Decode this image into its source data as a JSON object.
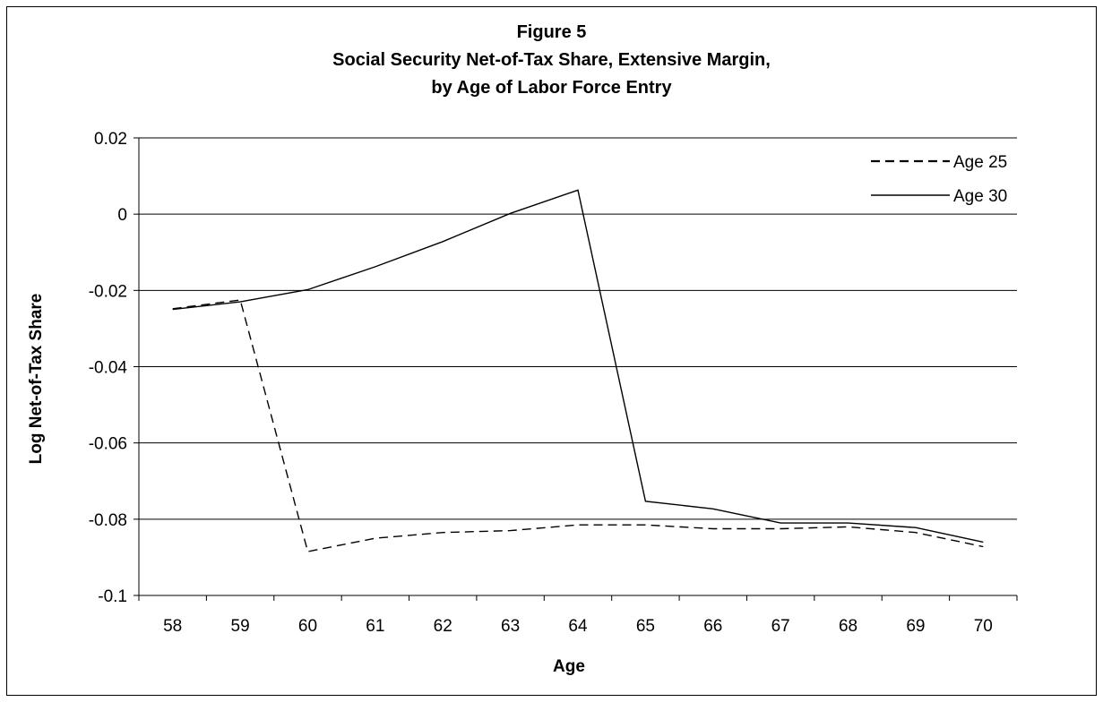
{
  "chart_data": {
    "type": "line",
    "title_lines": [
      "Figure 5",
      "Social Security Net-of-Tax Share, Extensive Margin,",
      "by Age of Labor Force Entry"
    ],
    "xlabel": "Age",
    "ylabel": "Log Net-of-Tax Share",
    "categories": [
      "58",
      "59",
      "60",
      "61",
      "62",
      "63",
      "64",
      "65",
      "66",
      "67",
      "68",
      "69",
      "70"
    ],
    "ylim": [
      -0.1,
      0.02
    ],
    "yticks": [
      -0.1,
      -0.08,
      -0.06,
      -0.04,
      -0.02,
      0,
      0.02
    ],
    "ytick_labels": [
      "-0.1",
      "-0.08",
      "-0.06",
      "-0.04",
      "-0.02",
      "0",
      "0.02"
    ],
    "grid": "horizontal",
    "legend_position": "top-right",
    "series": [
      {
        "name": "Age 25",
        "style": "dashed",
        "color": "#000000",
        "values": [
          -0.0248,
          -0.0225,
          -0.0885,
          -0.085,
          -0.0835,
          -0.083,
          -0.0815,
          -0.0815,
          -0.0825,
          -0.0825,
          -0.082,
          -0.0835,
          -0.0872
        ]
      },
      {
        "name": "Age 30",
        "style": "solid",
        "color": "#000000",
        "values": [
          -0.025,
          -0.023,
          -0.0198,
          -0.0138,
          -0.0072,
          0.0002,
          0.0063,
          -0.0753,
          -0.0773,
          -0.081,
          -0.081,
          -0.0822,
          -0.086
        ]
      }
    ]
  }
}
